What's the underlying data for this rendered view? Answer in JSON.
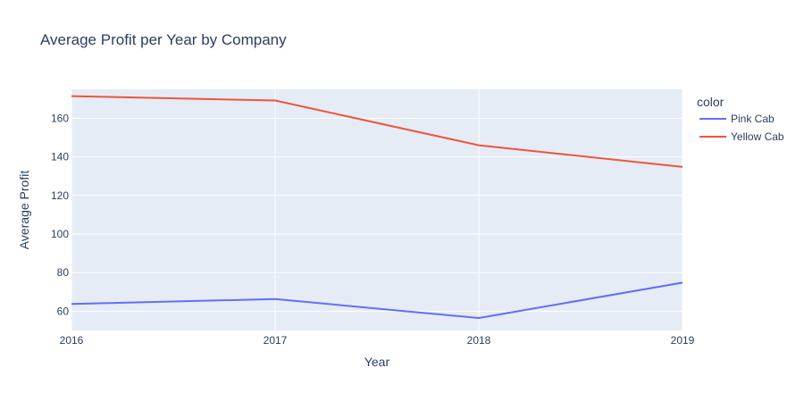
{
  "chart_data": {
    "type": "line",
    "title": "Average Profit per Year by Company",
    "xlabel": "Year",
    "ylabel": "Average Profit",
    "x": [
      2016,
      2017,
      2018,
      2019
    ],
    "xlim": [
      2016,
      2019
    ],
    "ylim": [
      50,
      175
    ],
    "yticks": [
      60,
      80,
      100,
      120,
      140,
      160
    ],
    "grid": true,
    "legend": {
      "title": "color",
      "position": "top-right"
    },
    "series": [
      {
        "name": "Pink Cab",
        "color": "#636efa",
        "values": [
          63.8,
          66.3,
          56.5,
          74.8
        ]
      },
      {
        "name": "Yellow Cab",
        "color": "#ef553b",
        "values": [
          171.5,
          169.2,
          146.0,
          134.8
        ]
      }
    ],
    "colors": {
      "plot_background": "#e5ecf6",
      "grid": "#ffffff",
      "text": "#2a3f5f"
    }
  }
}
